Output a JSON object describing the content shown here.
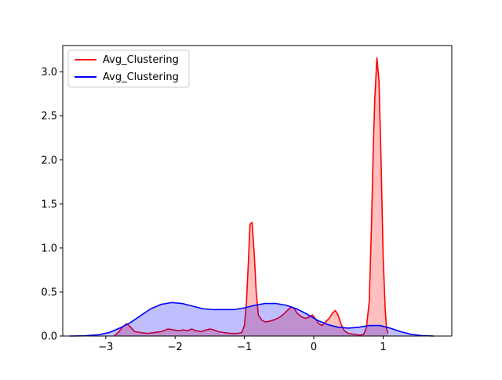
{
  "chart_data": {
    "type": "area",
    "title": "",
    "xlabel": "",
    "ylabel": "",
    "xlim": [
      -3.62,
      1.99
    ],
    "ylim": [
      0,
      3.3
    ],
    "x_ticks": [
      -3,
      -2,
      -1,
      0,
      1
    ],
    "x_tick_labels": [
      "−3",
      "−2",
      "−1",
      "0",
      "1"
    ],
    "y_ticks": [
      0.0,
      0.5,
      1.0,
      1.5,
      2.0,
      2.5,
      3.0
    ],
    "y_tick_labels": [
      "0.0",
      "0.5",
      "1.0",
      "1.5",
      "2.0",
      "2.5",
      "3.0"
    ],
    "grid": false,
    "legend": {
      "placement": "top-left"
    },
    "series": [
      {
        "name": "Avg_Clustering",
        "color": "#ff0000",
        "fill": "#ff0000",
        "points": [
          [
            -2.88,
            0.0
          ],
          [
            -2.82,
            0.04
          ],
          [
            -2.76,
            0.1
          ],
          [
            -2.7,
            0.14
          ],
          [
            -2.64,
            0.1
          ],
          [
            -2.58,
            0.05
          ],
          [
            -2.5,
            0.04
          ],
          [
            -2.4,
            0.03
          ],
          [
            -2.3,
            0.04
          ],
          [
            -2.2,
            0.05
          ],
          [
            -2.1,
            0.08
          ],
          [
            -2.02,
            0.07
          ],
          [
            -1.95,
            0.06
          ],
          [
            -1.88,
            0.07
          ],
          [
            -1.82,
            0.06
          ],
          [
            -1.76,
            0.08
          ],
          [
            -1.7,
            0.06
          ],
          [
            -1.62,
            0.05
          ],
          [
            -1.55,
            0.07
          ],
          [
            -1.5,
            0.08
          ],
          [
            -1.44,
            0.07
          ],
          [
            -1.38,
            0.05
          ],
          [
            -1.3,
            0.04
          ],
          [
            -1.2,
            0.03
          ],
          [
            -1.1,
            0.03
          ],
          [
            -1.04,
            0.04
          ],
          [
            -1.0,
            0.12
          ],
          [
            -0.97,
            0.4
          ],
          [
            -0.94,
            0.9
          ],
          [
            -0.92,
            1.27
          ],
          [
            -0.89,
            1.29
          ],
          [
            -0.86,
            0.95
          ],
          [
            -0.83,
            0.5
          ],
          [
            -0.8,
            0.24
          ],
          [
            -0.75,
            0.18
          ],
          [
            -0.7,
            0.16
          ],
          [
            -0.63,
            0.17
          ],
          [
            -0.55,
            0.19
          ],
          [
            -0.48,
            0.22
          ],
          [
            -0.42,
            0.26
          ],
          [
            -0.37,
            0.3
          ],
          [
            -0.32,
            0.33
          ],
          [
            -0.28,
            0.31
          ],
          [
            -0.24,
            0.26
          ],
          [
            -0.18,
            0.22
          ],
          [
            -0.12,
            0.2
          ],
          [
            -0.06,
            0.22
          ],
          [
            -0.02,
            0.24
          ],
          [
            0.02,
            0.2
          ],
          [
            0.07,
            0.14
          ],
          [
            0.12,
            0.12
          ],
          [
            0.17,
            0.16
          ],
          [
            0.22,
            0.2
          ],
          [
            0.27,
            0.26
          ],
          [
            0.31,
            0.29
          ],
          [
            0.35,
            0.24
          ],
          [
            0.39,
            0.14
          ],
          [
            0.44,
            0.06
          ],
          [
            0.5,
            0.03
          ],
          [
            0.58,
            0.02
          ],
          [
            0.66,
            0.01
          ],
          [
            0.72,
            0.02
          ],
          [
            0.76,
            0.1
          ],
          [
            0.8,
            0.4
          ],
          [
            0.83,
            1.2
          ],
          [
            0.86,
            2.2
          ],
          [
            0.88,
            2.7
          ],
          [
            0.91,
            3.16
          ],
          [
            0.94,
            2.9
          ],
          [
            0.97,
            2.0
          ],
          [
            1.0,
            0.9
          ],
          [
            1.03,
            0.3
          ],
          [
            1.05,
            0.08
          ],
          [
            1.07,
            0.03
          ]
        ]
      },
      {
        "name": "Avg_Clustering",
        "color": "#0000ff",
        "fill": "#0000ff",
        "points": [
          [
            -3.52,
            0.0
          ],
          [
            -3.3,
            0.003
          ],
          [
            -3.1,
            0.015
          ],
          [
            -2.95,
            0.04
          ],
          [
            -2.8,
            0.09
          ],
          [
            -2.65,
            0.15
          ],
          [
            -2.5,
            0.23
          ],
          [
            -2.35,
            0.31
          ],
          [
            -2.2,
            0.36
          ],
          [
            -2.05,
            0.38
          ],
          [
            -1.9,
            0.37
          ],
          [
            -1.75,
            0.34
          ],
          [
            -1.6,
            0.31
          ],
          [
            -1.45,
            0.3
          ],
          [
            -1.3,
            0.3
          ],
          [
            -1.15,
            0.3
          ],
          [
            -1.0,
            0.32
          ],
          [
            -0.85,
            0.35
          ],
          [
            -0.7,
            0.37
          ],
          [
            -0.55,
            0.37
          ],
          [
            -0.4,
            0.35
          ],
          [
            -0.25,
            0.31
          ],
          [
            -0.1,
            0.25
          ],
          [
            0.05,
            0.18
          ],
          [
            0.2,
            0.13
          ],
          [
            0.35,
            0.1
          ],
          [
            0.5,
            0.09
          ],
          [
            0.65,
            0.1
          ],
          [
            0.8,
            0.12
          ],
          [
            0.95,
            0.12
          ],
          [
            1.1,
            0.09
          ],
          [
            1.25,
            0.05
          ],
          [
            1.4,
            0.02
          ],
          [
            1.55,
            0.005
          ],
          [
            1.73,
            0.0
          ]
        ]
      }
    ]
  }
}
